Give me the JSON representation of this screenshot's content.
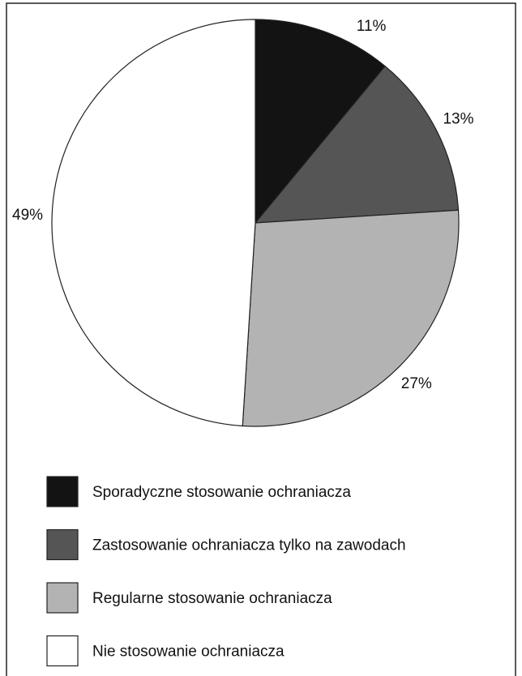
{
  "chart_data": {
    "type": "pie",
    "categories": [
      "Sporadyczne stosowanie ochraniacza",
      "Zastosowanie ochraniacza tylko na zawodach",
      "Regularne stosowanie ochraniacza",
      "Nie stosowanie ochraniacza"
    ],
    "values": [
      11,
      13,
      27,
      49
    ],
    "value_labels": [
      "11%",
      "13%",
      "27%",
      "49%"
    ],
    "colors": [
      "#131313",
      "#555555",
      "#b3b3b3",
      "#ffffff"
    ]
  }
}
